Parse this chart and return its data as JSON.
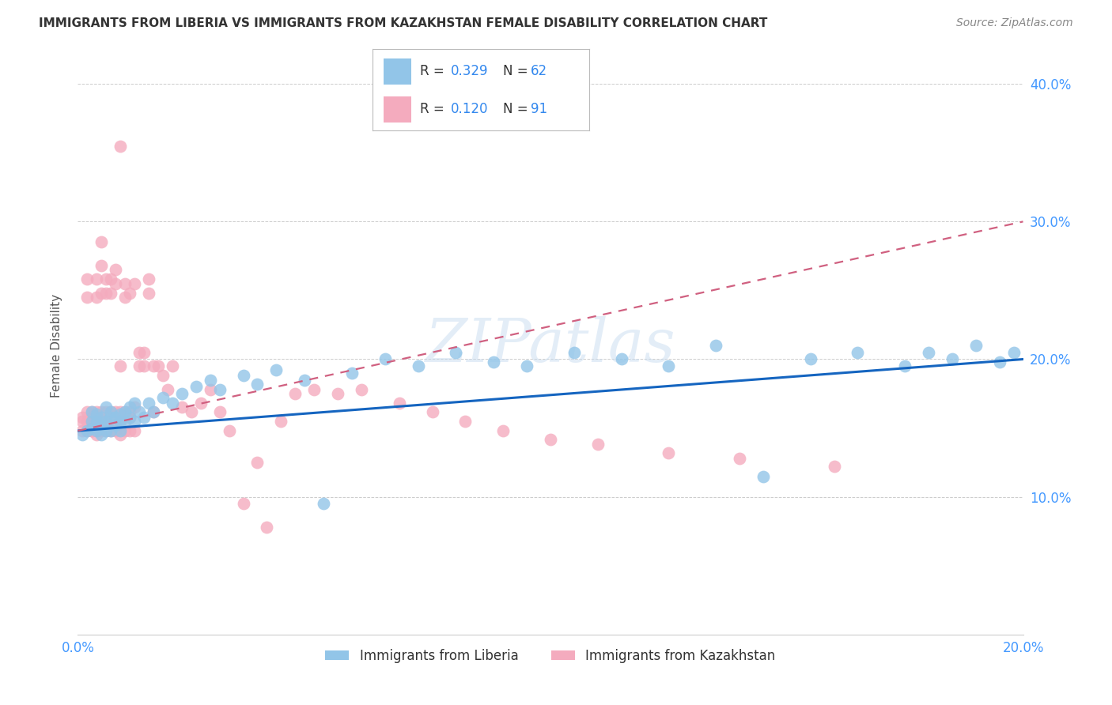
{
  "title": "IMMIGRANTS FROM LIBERIA VS IMMIGRANTS FROM KAZAKHSTAN FEMALE DISABILITY CORRELATION CHART",
  "source": "Source: ZipAtlas.com",
  "ylabel": "Female Disability",
  "xlim": [
    0.0,
    0.2
  ],
  "ylim": [
    0.0,
    0.42
  ],
  "series1_color": "#92C5E8",
  "series2_color": "#F4ABBE",
  "series1_label": "Immigrants from Liberia",
  "series2_label": "Immigrants from Kazakhstan",
  "series1_R": "0.329",
  "series1_N": "62",
  "series2_R": "0.120",
  "series2_N": "91",
  "trendline1_color": "#1565C0",
  "trendline2_color": "#D06080",
  "watermark": "ZIPatlas",
  "background_color": "#ffffff",
  "grid_color": "#cccccc",
  "title_color": "#333333",
  "source_color": "#888888",
  "tick_color": "#4499FF",
  "series1_x": [
    0.001,
    0.002,
    0.003,
    0.003,
    0.003,
    0.004,
    0.004,
    0.004,
    0.005,
    0.005,
    0.005,
    0.006,
    0.006,
    0.006,
    0.007,
    0.007,
    0.007,
    0.008,
    0.008,
    0.009,
    0.009,
    0.009,
    0.01,
    0.01,
    0.011,
    0.011,
    0.012,
    0.012,
    0.013,
    0.014,
    0.015,
    0.016,
    0.018,
    0.02,
    0.022,
    0.025,
    0.028,
    0.03,
    0.035,
    0.038,
    0.042,
    0.048,
    0.052,
    0.058,
    0.065,
    0.072,
    0.08,
    0.088,
    0.095,
    0.105,
    0.115,
    0.125,
    0.135,
    0.145,
    0.155,
    0.165,
    0.175,
    0.18,
    0.185,
    0.19,
    0.195,
    0.198
  ],
  "series1_y": [
    0.145,
    0.148,
    0.15,
    0.155,
    0.162,
    0.148,
    0.155,
    0.16,
    0.145,
    0.152,
    0.158,
    0.148,
    0.155,
    0.165,
    0.148,
    0.158,
    0.162,
    0.152,
    0.158,
    0.148,
    0.155,
    0.16,
    0.155,
    0.162,
    0.158,
    0.165,
    0.155,
    0.168,
    0.162,
    0.158,
    0.168,
    0.162,
    0.172,
    0.168,
    0.175,
    0.18,
    0.185,
    0.178,
    0.188,
    0.182,
    0.192,
    0.185,
    0.095,
    0.19,
    0.2,
    0.195,
    0.205,
    0.198,
    0.195,
    0.205,
    0.2,
    0.195,
    0.21,
    0.115,
    0.2,
    0.205,
    0.195,
    0.205,
    0.2,
    0.21,
    0.198,
    0.205
  ],
  "series2_x": [
    0.001,
    0.001,
    0.001,
    0.002,
    0.002,
    0.002,
    0.002,
    0.002,
    0.003,
    0.003,
    0.003,
    0.003,
    0.003,
    0.003,
    0.004,
    0.004,
    0.004,
    0.004,
    0.004,
    0.004,
    0.005,
    0.005,
    0.005,
    0.005,
    0.005,
    0.005,
    0.006,
    0.006,
    0.006,
    0.006,
    0.006,
    0.007,
    0.007,
    0.007,
    0.007,
    0.007,
    0.008,
    0.008,
    0.008,
    0.008,
    0.009,
    0.009,
    0.009,
    0.009,
    0.009,
    0.01,
    0.01,
    0.01,
    0.01,
    0.011,
    0.011,
    0.011,
    0.011,
    0.012,
    0.012,
    0.012,
    0.013,
    0.013,
    0.014,
    0.014,
    0.015,
    0.015,
    0.016,
    0.016,
    0.017,
    0.018,
    0.019,
    0.02,
    0.022,
    0.024,
    0.026,
    0.028,
    0.03,
    0.032,
    0.035,
    0.038,
    0.04,
    0.043,
    0.046,
    0.05,
    0.055,
    0.06,
    0.068,
    0.075,
    0.082,
    0.09,
    0.1,
    0.11,
    0.125,
    0.14,
    0.16
  ],
  "series2_y": [
    0.148,
    0.155,
    0.158,
    0.245,
    0.258,
    0.148,
    0.155,
    0.162,
    0.148,
    0.155,
    0.158,
    0.162,
    0.148,
    0.155,
    0.258,
    0.245,
    0.148,
    0.155,
    0.162,
    0.145,
    0.285,
    0.268,
    0.248,
    0.155,
    0.162,
    0.148,
    0.258,
    0.248,
    0.155,
    0.162,
    0.148,
    0.258,
    0.248,
    0.162,
    0.155,
    0.148,
    0.265,
    0.255,
    0.162,
    0.148,
    0.355,
    0.195,
    0.155,
    0.162,
    0.145,
    0.255,
    0.245,
    0.162,
    0.148,
    0.248,
    0.158,
    0.162,
    0.148,
    0.255,
    0.165,
    0.148,
    0.205,
    0.195,
    0.205,
    0.195,
    0.258,
    0.248,
    0.195,
    0.162,
    0.195,
    0.188,
    0.178,
    0.195,
    0.165,
    0.162,
    0.168,
    0.178,
    0.162,
    0.148,
    0.095,
    0.125,
    0.078,
    0.155,
    0.175,
    0.178,
    0.175,
    0.178,
    0.168,
    0.162,
    0.155,
    0.148,
    0.142,
    0.138,
    0.132,
    0.128,
    0.122
  ]
}
